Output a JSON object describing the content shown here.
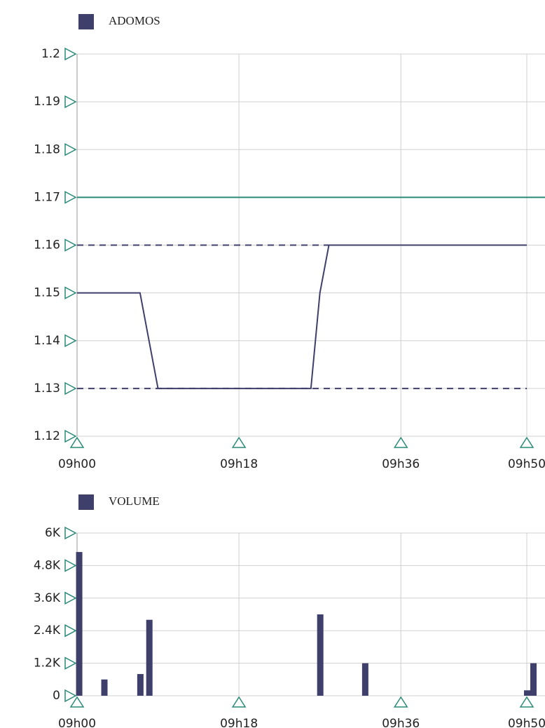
{
  "chart_data": [
    {
      "type": "line",
      "legend": "ADOMOS",
      "x": [
        0,
        7,
        9,
        26,
        27,
        28,
        50
      ],
      "series": [
        {
          "name": "ADOMOS",
          "color": "#3f3f6b",
          "values": [
            1.15,
            1.15,
            1.13,
            1.13,
            1.15,
            1.16,
            1.16
          ]
        }
      ],
      "reference_lines": [
        {
          "value": 1.17,
          "style": "solid",
          "color": "#2a8a78"
        },
        {
          "value": 1.16,
          "style": "dashed",
          "color": "#3f3f6b"
        },
        {
          "value": 1.13,
          "style": "dashed",
          "color": "#3f3f6b"
        }
      ],
      "xlim": [
        0,
        50
      ],
      "xticks": [
        {
          "value": 0,
          "label": "09h00"
        },
        {
          "value": 18,
          "label": "09h18"
        },
        {
          "value": 36,
          "label": "09h36"
        },
        {
          "value": 50,
          "label": "09h50"
        }
      ],
      "ylim": [
        1.12,
        1.2
      ],
      "yticks": [
        1.12,
        1.13,
        1.14,
        1.15,
        1.16,
        1.17,
        1.18,
        1.19,
        1.2
      ],
      "grid": true
    },
    {
      "type": "bar",
      "legend": "VOLUME",
      "x": [
        0.2,
        3,
        7,
        8,
        27,
        32,
        50,
        50.7
      ],
      "series": [
        {
          "name": "VOLUME",
          "color": "#3f3f6b",
          "values": [
            5300,
            600,
            800,
            2800,
            3000,
            1200,
            200,
            1200
          ]
        }
      ],
      "xlim": [
        0,
        50
      ],
      "xticks": [
        {
          "value": 0,
          "label": "09h00"
        },
        {
          "value": 18,
          "label": "09h18"
        },
        {
          "value": 36,
          "label": "09h36"
        },
        {
          "value": 50,
          "label": "09h50"
        }
      ],
      "ylim": [
        0,
        6000
      ],
      "yticks": [
        0,
        {
          "value": 1200,
          "label": "1.2K"
        },
        {
          "value": 2400,
          "label": "2.4K"
        },
        {
          "value": 3600,
          "label": "3.6K"
        },
        {
          "value": 4800,
          "label": "4.8K"
        },
        {
          "value": 6000,
          "label": "6K"
        }
      ],
      "grid": true
    }
  ]
}
